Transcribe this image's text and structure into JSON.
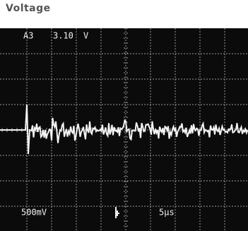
{
  "caption": "Voltage",
  "screen": {
    "channel": "A3",
    "reading": "3.10",
    "reading_unit": "V",
    "volts_per_div": "500mV",
    "time_per_div": "5μs"
  }
}
